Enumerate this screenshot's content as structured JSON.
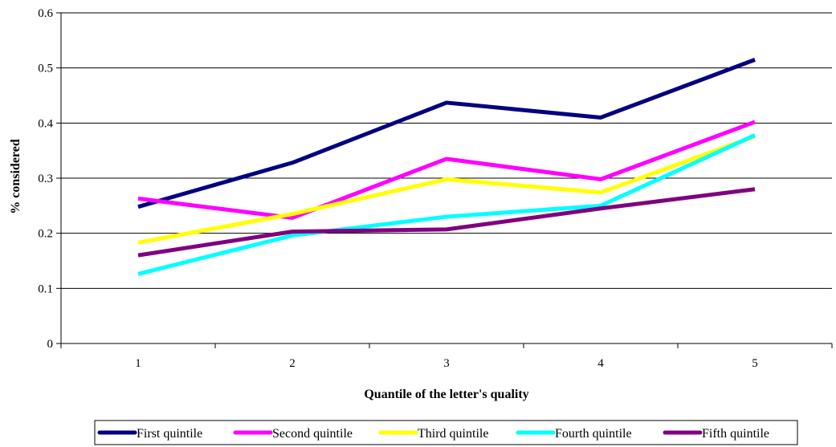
{
  "chart_data": {
    "type": "line",
    "title": "",
    "xlabel": "Quantile of the letter's quality",
    "ylabel": "% considered",
    "x": [
      1,
      2,
      3,
      4,
      5
    ],
    "x_tick_labels": [
      "1",
      "2",
      "3",
      "4",
      "5"
    ],
    "ylim": [
      0,
      0.6
    ],
    "y_ticks": [
      0,
      0.1,
      0.2,
      0.3,
      0.4,
      0.5,
      0.6
    ],
    "y_tick_labels": [
      "0",
      "0.1",
      "0.2",
      "0.3",
      "0.4",
      "0.5",
      "0.6"
    ],
    "grid": "horizontal",
    "legend_position": "bottom",
    "series": [
      {
        "name": "First quintile",
        "color": "#000080",
        "values": [
          0.248,
          0.328,
          0.437,
          0.41,
          0.515
        ]
      },
      {
        "name": "Second quintile",
        "color": "#ff00ff",
        "values": [
          0.263,
          0.228,
          0.335,
          0.298,
          0.402
        ]
      },
      {
        "name": "Third quintile",
        "color": "#ffff00",
        "values": [
          0.183,
          0.235,
          0.298,
          0.274,
          0.376
        ]
      },
      {
        "name": "Fourth quintile",
        "color": "#00ffff",
        "values": [
          0.126,
          0.196,
          0.23,
          0.25,
          0.378
        ]
      },
      {
        "name": "Fifth quintile",
        "color": "#800080",
        "values": [
          0.16,
          0.203,
          0.207,
          0.245,
          0.28
        ]
      }
    ]
  }
}
